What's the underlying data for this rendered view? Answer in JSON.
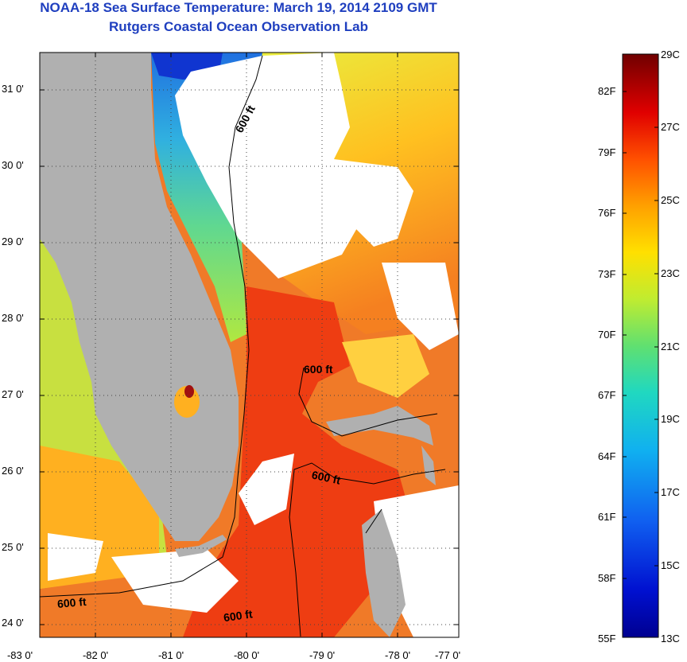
{
  "title": {
    "line1": "NOAA-18 Sea Surface Temperature:  March 19, 2014 2109 GMT",
    "line2": "Rutgers Coastal Ocean Observation Lab"
  },
  "axes": {
    "latitude_labels": [
      "31 0'",
      "30 0'",
      "29 0'",
      "28 0'",
      "27 0'",
      "26 0'",
      "25 0'",
      "24 0'"
    ],
    "longitude_labels": [
      "-83 0'",
      "-82 0'",
      "-81 0'",
      "-80 0'",
      "-79 0'",
      "-78 0'",
      "-77 0'"
    ]
  },
  "isobath_labels": [
    "600 ft",
    "600 ft",
    "600 ft",
    "600 ft",
    "600 ft"
  ],
  "colorbar": {
    "fahrenheit": [
      "82F",
      "79F",
      "76F",
      "73F",
      "70F",
      "67F",
      "64F",
      "61F",
      "58F",
      "55F"
    ],
    "celsius": [
      "29C",
      "27C",
      "25C",
      "23C",
      "21C",
      "19C",
      "17C",
      "15C",
      "13C"
    ],
    "colors": [
      "#7a0000",
      "#b40000",
      "#e60000",
      "#ff3a00",
      "#ff7a00",
      "#ffb000",
      "#ffe000",
      "#e8f020",
      "#a8e040",
      "#50d080",
      "#20c8c0",
      "#10a0e8",
      "#1060e0",
      "#1030d0",
      "#000090"
    ]
  },
  "colors": {
    "land": "#b0b0b0",
    "cloud": "#ffffff",
    "gulf_stream": "#f03a10",
    "warm": "#f07020",
    "shelf_cool": "#40c8b0",
    "cold": "#1540d0",
    "title": "#1f3fbf"
  }
}
